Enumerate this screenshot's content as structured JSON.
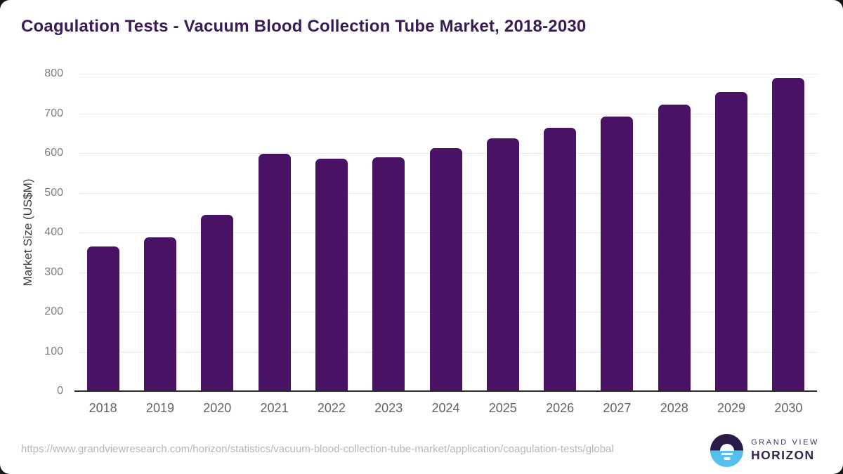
{
  "chart_data": {
    "type": "bar",
    "title": "Coagulation Tests - Vacuum Blood Collection Tube Market, 2018-2030",
    "categories": [
      "2018",
      "2019",
      "2020",
      "2021",
      "2022",
      "2023",
      "2024",
      "2025",
      "2026",
      "2027",
      "2028",
      "2029",
      "2030"
    ],
    "values": [
      365,
      387,
      445,
      599,
      585,
      590,
      613,
      638,
      664,
      692,
      723,
      754,
      789
    ],
    "xlabel": "",
    "ylabel": "Market Size (US$M)",
    "ylim": [
      0,
      800
    ],
    "ytick_step": 100,
    "yticks": [
      0,
      100,
      200,
      300,
      400,
      500,
      600,
      700,
      800
    ],
    "grid": "horizontal",
    "legend": "none",
    "bar_color": "#4a1264"
  },
  "footer": {
    "source_url": "https://www.grandviewresearch.com/horizon/statistics/vacuum-blood-collection-tube-market/application/coagulation-tests/global",
    "brand": {
      "line1": "GRAND VIEW",
      "line2": "HORIZON"
    }
  },
  "colors": {
    "title": "#3b1b56",
    "bar": "#4a1264",
    "axis_line": "#2e2e2e",
    "gridline": "#e7e7e7",
    "y_tick_label": "#7d7d7d",
    "x_tick_label": "#5f6368",
    "y_axis_title": "#3d3d3d",
    "source_url": "#b6b6b6",
    "logo_dark_half": "#2a1a47",
    "logo_blue_half": "#56bfee",
    "brand_text_top": "#41325f",
    "brand_text_bottom": "#32254e",
    "page_background": "#161616"
  }
}
